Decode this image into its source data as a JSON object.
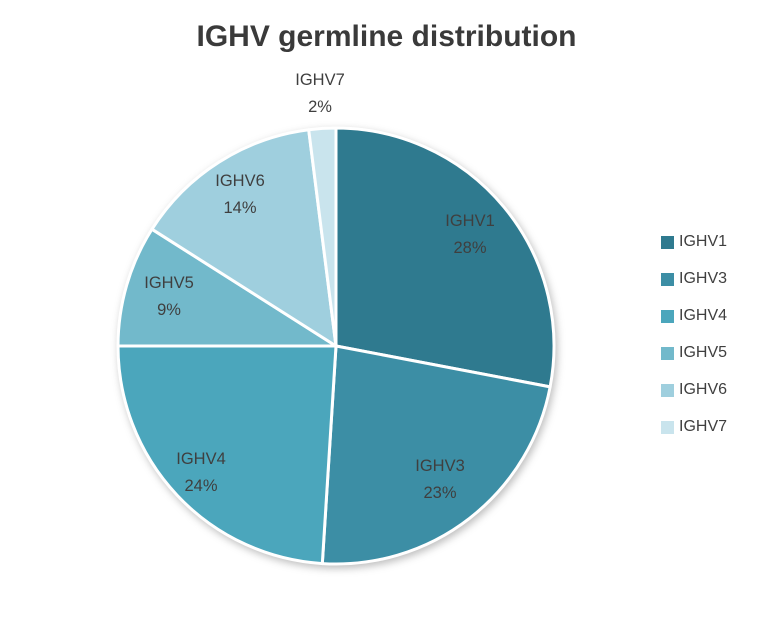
{
  "chart_data": {
    "type": "pie",
    "title": "IGHV germline distribution",
    "categories": [
      "IGHV1",
      "IGHV3",
      "IGHV4",
      "IGHV5",
      "IGHV6",
      "IGHV7"
    ],
    "values": [
      28,
      23,
      24,
      9,
      14,
      2
    ],
    "labels": [
      "28%",
      "23%",
      "24%",
      "9%",
      "14%",
      "2%"
    ],
    "unit": "%",
    "colors": [
      "#2F7A8F",
      "#3C8EA5",
      "#4BA6BC",
      "#72B9CB",
      "#9FCFDE",
      "#C9E4ED"
    ],
    "slice_border_color": "#FFFFFF",
    "label_color": "#3F3F3F",
    "title_color": "#3A3A3A",
    "start_angle_deg": 0,
    "direction": "clockwise",
    "legend": {
      "position": "right",
      "entries": [
        "IGHV1",
        "IGHV3",
        "IGHV4",
        "IGHV5",
        "IGHV6",
        "IGHV7"
      ]
    }
  }
}
